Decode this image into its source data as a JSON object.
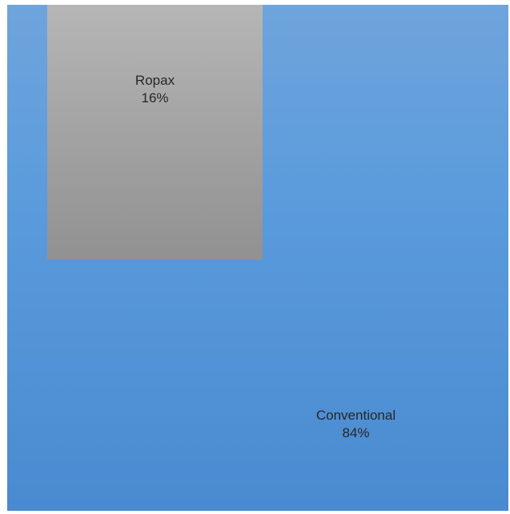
{
  "chart_data": {
    "type": "treemap",
    "series": [
      {
        "name": "",
        "points": [
          {
            "category": "Ropax",
            "value": 16,
            "label": "16%",
            "color": "#a5a5a5"
          },
          {
            "category": "Conventional",
            "value": 84,
            "label": "84%",
            "color": "#5b9bd5"
          }
        ]
      }
    ],
    "legend": "none",
    "grid": false
  }
}
